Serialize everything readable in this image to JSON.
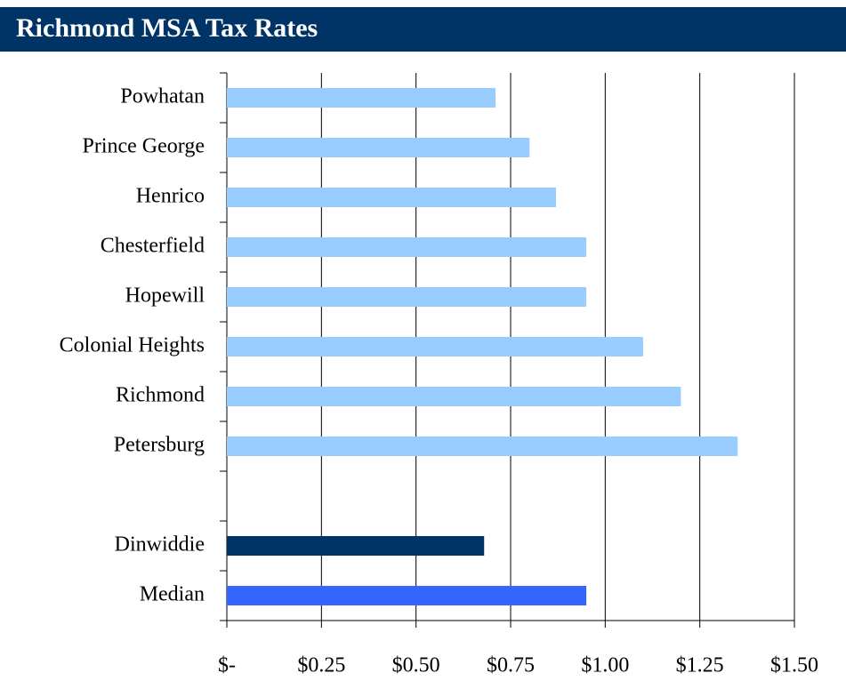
{
  "chart_data": {
    "type": "bar",
    "orientation": "horizontal",
    "title": "Richmond MSA Tax Rates",
    "categories": [
      "Powhatan",
      "Prince George",
      "Henrico",
      "Chesterfield",
      "Hopewill",
      "Colonial Heights",
      "Richmond",
      "Petersburg",
      null,
      "Dinwiddie",
      "Median"
    ],
    "values": [
      0.71,
      0.8,
      0.87,
      0.95,
      0.95,
      1.1,
      1.2,
      1.35,
      null,
      0.68,
      0.95
    ],
    "colors": [
      "#99ccff",
      "#99ccff",
      "#99ccff",
      "#99ccff",
      "#99ccff",
      "#99ccff",
      "#99ccff",
      "#99ccff",
      null,
      "#003366",
      "#3366ff"
    ],
    "xlim": [
      0,
      1.5
    ],
    "xticks": [
      {
        "value": 0,
        "label": "$-"
      },
      {
        "value": 0.25,
        "label": "$0.25"
      },
      {
        "value": 0.5,
        "label": "$0.50"
      },
      {
        "value": 0.75,
        "label": "$0.75"
      },
      {
        "value": 1,
        "label": "$1.00"
      },
      {
        "value": 1.25,
        "label": "$1.25"
      },
      {
        "value": 1.5,
        "label": "$1.50"
      }
    ],
    "grid": true
  }
}
